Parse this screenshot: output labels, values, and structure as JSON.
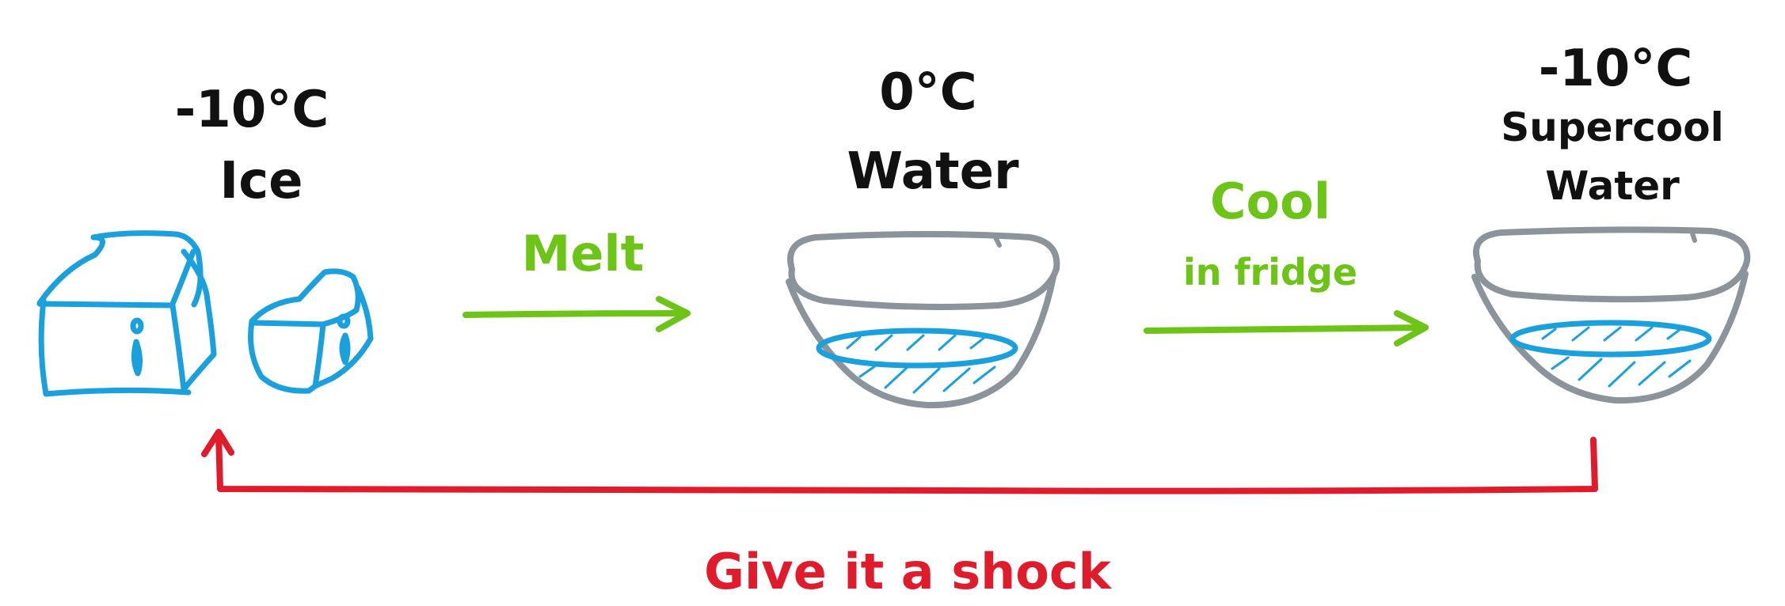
{
  "colors": {
    "ink": "#111111",
    "ice": "#1aa0dc",
    "bowl": "#8a949a",
    "process": "#6cc417",
    "shock": "#e01b2b"
  },
  "states": [
    {
      "temp": "-10°C",
      "name_lines": [
        "Ice"
      ],
      "icon": "ice-cubes-icon"
    },
    {
      "temp": "0°C",
      "name_lines": [
        "Water"
      ],
      "icon": "water-bowl-icon"
    },
    {
      "temp": "-10°C",
      "name_lines": [
        "Supercool",
        "Water"
      ],
      "icon": "supercool-water-bowl-icon"
    }
  ],
  "transitions": {
    "melt": {
      "lines": [
        "Melt"
      ]
    },
    "cool": {
      "lines": [
        "Cool",
        "in fridge"
      ]
    },
    "shock": {
      "lines": [
        "Give it a shock"
      ]
    }
  }
}
